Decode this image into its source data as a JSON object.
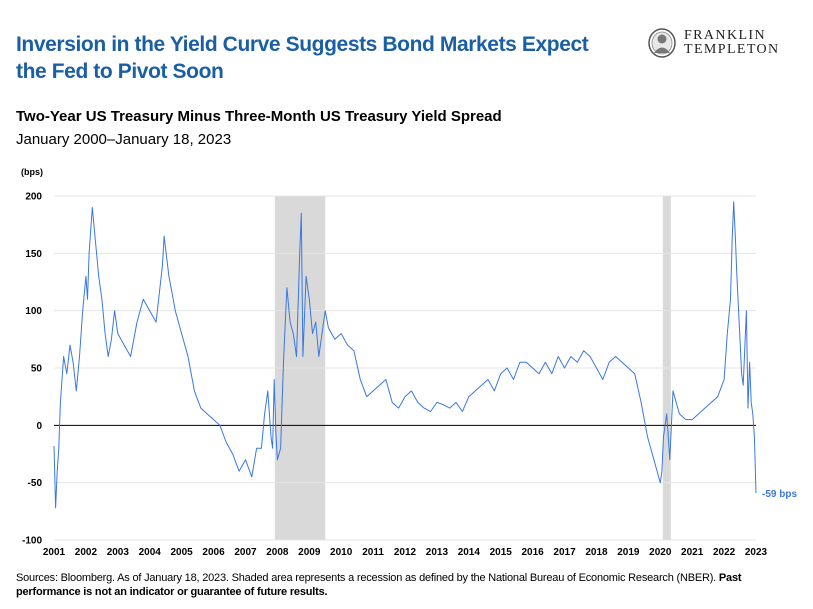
{
  "header": {
    "headline_line1": "Inversion in the Yield Curve Suggests Bond Markets Expect",
    "headline_line2": "the Fed to Pivot Soon",
    "logo_line1": "FRANKLIN",
    "logo_line2": "TEMPLETON"
  },
  "chart_data": {
    "type": "line",
    "title": "Two-Year US Treasury Minus Three-Month US Treasury Yield Spread",
    "subtitle": "January 2000–January 18, 2023",
    "ylabel": "(bps)",
    "ylim": [
      -100,
      200
    ],
    "yticks": [
      -100,
      -50,
      0,
      50,
      100,
      150,
      200
    ],
    "xlim": [
      2001,
      2023
    ],
    "xticks": [
      "2001",
      "2002",
      "2003",
      "2004",
      "2005",
      "2006",
      "2007",
      "2008",
      "2009",
      "2010",
      "2011",
      "2012",
      "2013",
      "2014",
      "2015",
      "2016",
      "2017",
      "2018",
      "2019",
      "2020",
      "2021",
      "2022",
      "2023"
    ],
    "line_color": "#3a78e0",
    "recession_color": "#d9d9d9",
    "recessions": [
      [
        2007.92,
        2009.5
      ],
      [
        2020.08,
        2020.33
      ]
    ],
    "end_label": "-59 bps",
    "series": [
      {
        "x": [
          2001.0,
          2001.05,
          2001.1,
          2001.15,
          2001.2,
          2001.3,
          2001.4,
          2001.5,
          2001.6,
          2001.7,
          2001.8,
          2001.9,
          2002.0,
          2002.05,
          2002.1,
          2002.2,
          2002.3,
          2002.4,
          2002.5,
          2002.6,
          2002.7,
          2002.8,
          2002.9,
          2003.0,
          2003.2,
          2003.4,
          2003.6,
          2003.8,
          2004.0,
          2004.2,
          2004.4,
          2004.45,
          2004.6,
          2004.8,
          2005.0,
          2005.2,
          2005.4,
          2005.6,
          2005.8,
          2006.0,
          2006.2,
          2006.4,
          2006.6,
          2006.8,
          2007.0,
          2007.2,
          2007.35,
          2007.5,
          2007.6,
          2007.7,
          2007.8,
          2007.85,
          2007.9,
          2007.95,
          2008.0,
          2008.1,
          2008.2,
          2008.3,
          2008.4,
          2008.5,
          2008.6,
          2008.7,
          2008.75,
          2008.8,
          2008.9,
          2009.0,
          2009.1,
          2009.2,
          2009.3,
          2009.4,
          2009.5,
          2009.6,
          2009.8,
          2010.0,
          2010.2,
          2010.4,
          2010.6,
          2010.8,
          2011.0,
          2011.2,
          2011.4,
          2011.6,
          2011.8,
          2012.0,
          2012.2,
          2012.4,
          2012.6,
          2012.8,
          2013.0,
          2013.2,
          2013.4,
          2013.6,
          2013.8,
          2014.0,
          2014.2,
          2014.4,
          2014.6,
          2014.8,
          2015.0,
          2015.2,
          2015.4,
          2015.6,
          2015.8,
          2016.0,
          2016.2,
          2016.4,
          2016.6,
          2016.8,
          2017.0,
          2017.2,
          2017.4,
          2017.6,
          2017.8,
          2018.0,
          2018.2,
          2018.4,
          2018.6,
          2018.8,
          2019.0,
          2019.2,
          2019.4,
          2019.6,
          2019.8,
          2020.0,
          2020.05,
          2020.1,
          2020.2,
          2020.3,
          2020.4,
          2020.6,
          2020.8,
          2021.0,
          2021.2,
          2021.4,
          2021.6,
          2021.8,
          2022.0,
          2022.1,
          2022.2,
          2022.25,
          2022.3,
          2022.35,
          2022.4,
          2022.5,
          2022.55,
          2022.6,
          2022.7,
          2022.75,
          2022.8,
          2022.85,
          2022.9,
          2022.95,
          2023.0
        ],
        "values": [
          -18,
          -72,
          -40,
          -20,
          20,
          60,
          45,
          70,
          55,
          30,
          60,
          100,
          130,
          110,
          150,
          190,
          160,
          130,
          110,
          80,
          60,
          75,
          100,
          80,
          70,
          60,
          90,
          110,
          100,
          90,
          140,
          165,
          130,
          100,
          80,
          60,
          30,
          15,
          10,
          5,
          0,
          -15,
          -25,
          -40,
          -30,
          -45,
          -20,
          -20,
          10,
          30,
          -10,
          -20,
          40,
          -5,
          -30,
          -20,
          60,
          120,
          90,
          80,
          60,
          150,
          185,
          60,
          130,
          110,
          80,
          90,
          60,
          80,
          100,
          85,
          75,
          80,
          70,
          65,
          40,
          25,
          30,
          35,
          40,
          20,
          15,
          25,
          30,
          20,
          15,
          12,
          20,
          18,
          15,
          20,
          12,
          25,
          30,
          35,
          40,
          30,
          45,
          50,
          40,
          55,
          55,
          50,
          45,
          55,
          45,
          60,
          50,
          60,
          55,
          65,
          60,
          50,
          40,
          55,
          60,
          55,
          50,
          45,
          20,
          -10,
          -30,
          -50,
          -40,
          -10,
          10,
          -30,
          30,
          10,
          5,
          5,
          10,
          15,
          20,
          25,
          40,
          80,
          110,
          160,
          195,
          165,
          130,
          75,
          45,
          35,
          100,
          15,
          55,
          20,
          10,
          -10,
          -59
        ]
      }
    ]
  },
  "footer": {
    "text": "Sources: Bloomberg. As of January 18, 2023. Shaded area represents a recession as defined by the National Bureau of Economic Research (NBER).",
    "bold": "Past performance is not an indicator or guarantee of future results."
  }
}
